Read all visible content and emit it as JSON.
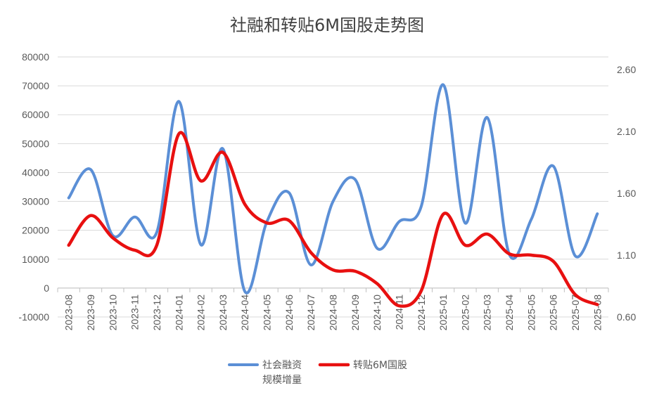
{
  "chart_data": {
    "type": "line",
    "title": "社融和转贴6M国股走势图",
    "categories": [
      "2023-08",
      "2023-09",
      "2023-10",
      "2023-11",
      "2023-12",
      "2024-01",
      "2024-02",
      "2024-03",
      "2024-04",
      "2024-05",
      "2024-06",
      "2024-07",
      "2024-08",
      "2024-09",
      "2024-10",
      "2024-11",
      "2024-12",
      "2025-01",
      "2025-02",
      "2025-03",
      "2025-04",
      "2025-05",
      "2025-06",
      "2025-07",
      "2025-08"
    ],
    "y_left": {
      "ticks": [
        "80000",
        "70000",
        "60000",
        "50000",
        "40000",
        "30000",
        "20000",
        "10000",
        "0",
        "-10000"
      ],
      "min": -10000,
      "max": 80000
    },
    "y_right": {
      "ticks": [
        "2.60",
        "2.10",
        "1.60",
        "1.10",
        "0.60"
      ],
      "min": 0.6,
      "max": 2.6
    },
    "series": [
      {
        "name_lines": [
          "社会融资",
          "规模增量"
        ],
        "axis": "left",
        "color": "#5B8FD6",
        "values": [
          31200,
          41000,
          18200,
          24600,
          19300,
          64600,
          15000,
          48200,
          -1200,
          23000,
          33000,
          8000,
          30000,
          37600,
          13800,
          23000,
          28200,
          70400,
          22500,
          59000,
          11700,
          23800,
          42200,
          11100,
          25700
        ]
      },
      {
        "name": "转贴6M国股",
        "axis": "right",
        "color": "#E81010",
        "values": [
          1.18,
          1.42,
          1.24,
          1.14,
          1.18,
          2.08,
          1.7,
          1.93,
          1.51,
          1.36,
          1.38,
          1.12,
          0.98,
          0.97,
          0.87,
          0.69,
          0.81,
          1.43,
          1.18,
          1.27,
          1.11,
          1.1,
          1.05,
          0.78,
          0.7
        ]
      }
    ],
    "legend": "bottom",
    "grid": true
  }
}
